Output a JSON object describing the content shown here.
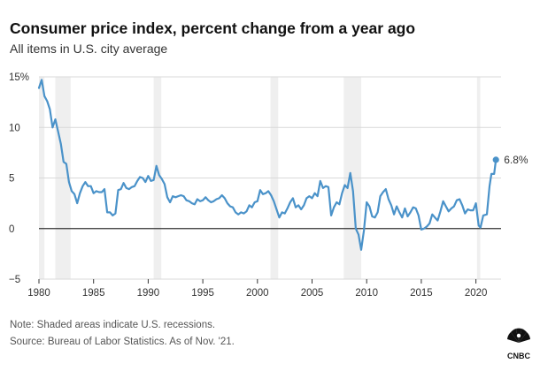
{
  "header": {
    "title": "Consumer price index, percent change from a year ago",
    "subtitle": "All items in U.S. city average"
  },
  "footer": {
    "note": "Note: Shaded areas indicate U.S. recessions.",
    "source": "Source: Bureau of Labor Statistics. As of Nov. '21."
  },
  "logo": {
    "text": "CNBC",
    "icon": "nbc-peacock-icon"
  },
  "chart_data": {
    "type": "line",
    "title": "Consumer price index, percent change from a year ago",
    "subtitle": "All items in U.S. city average",
    "xlabel": "",
    "ylabel": "",
    "xlim": [
      1980,
      2022.3
    ],
    "ylim": [
      -5,
      15
    ],
    "x_ticks": [
      1980,
      1985,
      1990,
      1995,
      2000,
      2005,
      2010,
      2015,
      2020
    ],
    "y_ticks": [
      {
        "value": -5,
        "label": "−5"
      },
      {
        "value": 0,
        "label": "0"
      },
      {
        "value": 5,
        "label": "5"
      },
      {
        "value": 10,
        "label": "10"
      },
      {
        "value": 15,
        "label": "15%"
      }
    ],
    "grid": "horizontal",
    "zero_line": true,
    "line_color": "#4a92c9",
    "recession_color": "#efefef",
    "recessions": [
      [
        1980.0,
        1980.5
      ],
      [
        1981.5,
        1982.9
      ],
      [
        1990.5,
        1991.2
      ],
      [
        2001.2,
        2001.9
      ],
      [
        2007.9,
        2009.5
      ],
      [
        2020.1,
        2020.4
      ]
    ],
    "end_point": {
      "x": 2021.83,
      "y": 6.8,
      "label": "6.8%"
    },
    "series": [
      {
        "values": [
          [
            1980.0,
            13.9
          ],
          [
            1980.25,
            14.7
          ],
          [
            1980.5,
            13.1
          ],
          [
            1980.75,
            12.6
          ],
          [
            1981.0,
            11.8
          ],
          [
            1981.25,
            10.0
          ],
          [
            1981.5,
            10.8
          ],
          [
            1981.75,
            9.6
          ],
          [
            1982.0,
            8.4
          ],
          [
            1982.25,
            6.6
          ],
          [
            1982.5,
            6.4
          ],
          [
            1982.75,
            4.6
          ],
          [
            1983.0,
            3.7
          ],
          [
            1983.25,
            3.4
          ],
          [
            1983.5,
            2.5
          ],
          [
            1983.75,
            3.5
          ],
          [
            1984.0,
            4.2
          ],
          [
            1984.25,
            4.6
          ],
          [
            1984.5,
            4.2
          ],
          [
            1984.75,
            4.2
          ],
          [
            1985.0,
            3.5
          ],
          [
            1985.25,
            3.7
          ],
          [
            1985.5,
            3.6
          ],
          [
            1985.75,
            3.6
          ],
          [
            1986.0,
            3.9
          ],
          [
            1986.25,
            1.6
          ],
          [
            1986.5,
            1.6
          ],
          [
            1986.75,
            1.3
          ],
          [
            1987.0,
            1.5
          ],
          [
            1987.25,
            3.8
          ],
          [
            1987.5,
            3.9
          ],
          [
            1987.75,
            4.5
          ],
          [
            1988.0,
            4.0
          ],
          [
            1988.25,
            3.9
          ],
          [
            1988.5,
            4.1
          ],
          [
            1988.75,
            4.2
          ],
          [
            1989.0,
            4.7
          ],
          [
            1989.25,
            5.1
          ],
          [
            1989.5,
            5.0
          ],
          [
            1989.75,
            4.6
          ],
          [
            1990.0,
            5.2
          ],
          [
            1990.25,
            4.7
          ],
          [
            1990.5,
            4.8
          ],
          [
            1990.75,
            6.2
          ],
          [
            1991.0,
            5.3
          ],
          [
            1991.25,
            4.9
          ],
          [
            1991.5,
            4.4
          ],
          [
            1991.75,
            3.1
          ],
          [
            1992.0,
            2.6
          ],
          [
            1992.25,
            3.2
          ],
          [
            1992.5,
            3.1
          ],
          [
            1992.75,
            3.2
          ],
          [
            1993.0,
            3.3
          ],
          [
            1993.25,
            3.2
          ],
          [
            1993.5,
            2.8
          ],
          [
            1993.75,
            2.7
          ],
          [
            1994.0,
            2.5
          ],
          [
            1994.25,
            2.4
          ],
          [
            1994.5,
            2.9
          ],
          [
            1994.75,
            2.7
          ],
          [
            1995.0,
            2.8
          ],
          [
            1995.25,
            3.1
          ],
          [
            1995.5,
            2.8
          ],
          [
            1995.75,
            2.6
          ],
          [
            1996.0,
            2.7
          ],
          [
            1996.25,
            2.9
          ],
          [
            1996.5,
            3.0
          ],
          [
            1996.75,
            3.3
          ],
          [
            1997.0,
            3.0
          ],
          [
            1997.25,
            2.5
          ],
          [
            1997.5,
            2.2
          ],
          [
            1997.75,
            2.1
          ],
          [
            1998.0,
            1.6
          ],
          [
            1998.25,
            1.4
          ],
          [
            1998.5,
            1.6
          ],
          [
            1998.75,
            1.5
          ],
          [
            1999.0,
            1.7
          ],
          [
            1999.25,
            2.3
          ],
          [
            1999.5,
            2.1
          ],
          [
            1999.75,
            2.6
          ],
          [
            2000.0,
            2.7
          ],
          [
            2000.25,
            3.8
          ],
          [
            2000.5,
            3.4
          ],
          [
            2000.75,
            3.5
          ],
          [
            2001.0,
            3.7
          ],
          [
            2001.25,
            3.3
          ],
          [
            2001.5,
            2.7
          ],
          [
            2001.75,
            1.9
          ],
          [
            2002.0,
            1.1
          ],
          [
            2002.25,
            1.6
          ],
          [
            2002.5,
            1.5
          ],
          [
            2002.75,
            2.0
          ],
          [
            2003.0,
            2.6
          ],
          [
            2003.25,
            3.0
          ],
          [
            2003.5,
            2.1
          ],
          [
            2003.75,
            2.3
          ],
          [
            2004.0,
            1.9
          ],
          [
            2004.25,
            2.3
          ],
          [
            2004.5,
            3.0
          ],
          [
            2004.75,
            3.2
          ],
          [
            2005.0,
            3.0
          ],
          [
            2005.25,
            3.5
          ],
          [
            2005.5,
            3.2
          ],
          [
            2005.75,
            4.7
          ],
          [
            2006.0,
            4.0
          ],
          [
            2006.25,
            4.2
          ],
          [
            2006.5,
            4.1
          ],
          [
            2006.75,
            1.3
          ],
          [
            2007.0,
            2.1
          ],
          [
            2007.25,
            2.6
          ],
          [
            2007.5,
            2.4
          ],
          [
            2007.75,
            3.5
          ],
          [
            2008.0,
            4.3
          ],
          [
            2008.25,
            4.0
          ],
          [
            2008.5,
            5.5
          ],
          [
            2008.75,
            3.7
          ],
          [
            2009.0,
            0.0
          ],
          [
            2009.25,
            -0.6
          ],
          [
            2009.5,
            -2.1
          ],
          [
            2009.75,
            -0.2
          ],
          [
            2010.0,
            2.6
          ],
          [
            2010.25,
            2.2
          ],
          [
            2010.5,
            1.2
          ],
          [
            2010.75,
            1.1
          ],
          [
            2011.0,
            1.6
          ],
          [
            2011.25,
            3.2
          ],
          [
            2011.5,
            3.6
          ],
          [
            2011.75,
            3.9
          ],
          [
            2012.0,
            2.9
          ],
          [
            2012.25,
            2.3
          ],
          [
            2012.5,
            1.4
          ],
          [
            2012.75,
            2.2
          ],
          [
            2013.0,
            1.6
          ],
          [
            2013.25,
            1.1
          ],
          [
            2013.5,
            2.0
          ],
          [
            2013.75,
            1.2
          ],
          [
            2014.0,
            1.6
          ],
          [
            2014.25,
            2.1
          ],
          [
            2014.5,
            2.0
          ],
          [
            2014.75,
            1.3
          ],
          [
            2015.0,
            -0.1
          ],
          [
            2015.25,
            0.0
          ],
          [
            2015.5,
            0.2
          ],
          [
            2015.75,
            0.5
          ],
          [
            2016.0,
            1.4
          ],
          [
            2016.25,
            1.1
          ],
          [
            2016.5,
            0.8
          ],
          [
            2016.75,
            1.7
          ],
          [
            2017.0,
            2.7
          ],
          [
            2017.25,
            2.2
          ],
          [
            2017.5,
            1.7
          ],
          [
            2017.75,
            2.0
          ],
          [
            2018.0,
            2.2
          ],
          [
            2018.25,
            2.8
          ],
          [
            2018.5,
            2.9
          ],
          [
            2018.75,
            2.3
          ],
          [
            2019.0,
            1.5
          ],
          [
            2019.25,
            1.9
          ],
          [
            2019.5,
            1.8
          ],
          [
            2019.75,
            1.8
          ],
          [
            2020.0,
            2.5
          ],
          [
            2020.25,
            0.3
          ],
          [
            2020.42,
            0.1
          ],
          [
            2020.67,
            1.3
          ],
          [
            2021.0,
            1.4
          ],
          [
            2021.25,
            4.2
          ],
          [
            2021.42,
            5.4
          ],
          [
            2021.67,
            5.4
          ],
          [
            2021.83,
            6.8
          ]
        ]
      }
    ]
  }
}
